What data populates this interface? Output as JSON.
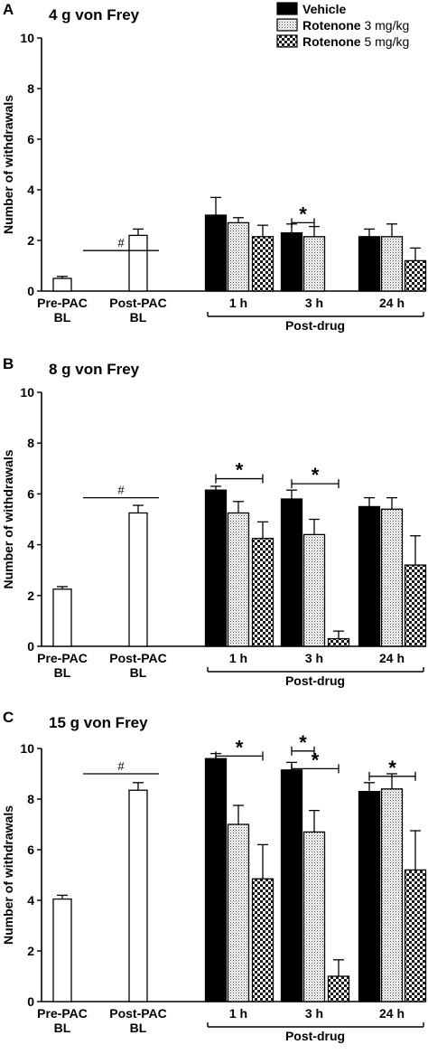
{
  "legend": [
    {
      "bold": "Vehicle",
      "rest": "",
      "pattern": "solid"
    },
    {
      "bold": "Rotenone",
      "rest": " 3 mg/kg",
      "pattern": "dots"
    },
    {
      "bold": "Rotenone",
      "rest": " 5 mg/kg",
      "pattern": "checker"
    }
  ],
  "colors": {
    "vehicle": "#000000",
    "outline": "#000000",
    "background": "#ffffff"
  },
  "ylabel": "Number of withdrawals",
  "baseline_labels": [
    [
      "Pre-PAC",
      "BL"
    ],
    [
      "Post-PAC",
      "BL"
    ]
  ],
  "time_labels": [
    "1 h",
    "3 h",
    "24 h"
  ],
  "postdrug_label": "Post-drug",
  "hash_symbol": "#",
  "star_symbol": "*",
  "chart_data": [
    {
      "type": "bar",
      "panel": "A",
      "title": "4 g von Frey",
      "ylabel": "Number of withdrawals",
      "ylim": [
        0,
        10
      ],
      "yticks": [
        "0",
        "2",
        "4",
        "6",
        "8",
        "10"
      ],
      "baseline": [
        {
          "label": "Pre-PAC BL",
          "value": 0.5,
          "err": 0.08
        },
        {
          "label": "Post-PAC BL",
          "value": 2.2,
          "err": 0.25
        }
      ],
      "categories": [
        "1 h",
        "3 h",
        "24 h"
      ],
      "series": [
        {
          "name": "Vehicle",
          "values": [
            3.0,
            2.3,
            2.15
          ],
          "err": [
            0.7,
            0.35,
            0.3
          ]
        },
        {
          "name": "Rotenone 3 mg/kg",
          "values": [
            2.7,
            2.15,
            2.15
          ],
          "err": [
            0.2,
            0.4,
            0.5
          ]
        },
        {
          "name": "Rotenone 5 mg/kg",
          "values": [
            2.15,
            0.0,
            1.2
          ],
          "err": [
            0.45,
            0.0,
            0.5
          ]
        }
      ],
      "significance": [
        {
          "symbol": "#",
          "between": [
            "Pre-PAC BL",
            "Post-PAC BL"
          ],
          "level": 1.6
        },
        {
          "symbol": "*",
          "time": "3 h",
          "between": [
            "Vehicle",
            "Rotenone 3 mg/kg"
          ],
          "level": 2.7
        }
      ]
    },
    {
      "type": "bar",
      "panel": "B",
      "title": "8 g von Frey",
      "ylabel": "Number of withdrawals",
      "ylim": [
        0,
        10
      ],
      "yticks": [
        "0",
        "2",
        "4",
        "6",
        "8",
        "10"
      ],
      "baseline": [
        {
          "label": "Pre-PAC BL",
          "value": 2.25,
          "err": 0.1
        },
        {
          "label": "Post-PAC BL",
          "value": 5.25,
          "err": 0.3
        }
      ],
      "categories": [
        "1 h",
        "3 h",
        "24 h"
      ],
      "series": [
        {
          "name": "Vehicle",
          "values": [
            6.15,
            5.8,
            5.5
          ],
          "err": [
            0.15,
            0.35,
            0.35
          ]
        },
        {
          "name": "Rotenone 3 mg/kg",
          "values": [
            5.25,
            4.4,
            5.4
          ],
          "err": [
            0.45,
            0.6,
            0.45
          ]
        },
        {
          "name": "Rotenone 5 mg/kg",
          "values": [
            4.25,
            0.3,
            3.2
          ],
          "err": [
            0.65,
            0.3,
            1.15
          ]
        }
      ],
      "significance": [
        {
          "symbol": "#",
          "between": [
            "Pre-PAC BL",
            "Post-PAC BL"
          ],
          "level": 5.85
        },
        {
          "symbol": "*",
          "time": "1 h",
          "between": [
            "Vehicle",
            "Rotenone 5 mg/kg"
          ],
          "level": 6.6
        },
        {
          "symbol": "*",
          "time": "3 h",
          "between": [
            "Vehicle",
            "Rotenone 5 mg/kg"
          ],
          "level": 6.4
        }
      ]
    },
    {
      "type": "bar",
      "panel": "C",
      "title": "15 g von Frey",
      "ylabel": "Number of withdrawals",
      "ylim": [
        0,
        10
      ],
      "yticks": [
        "0",
        "2",
        "4",
        "6",
        "8",
        "10"
      ],
      "baseline": [
        {
          "label": "Pre-PAC BL",
          "value": 4.05,
          "err": 0.15
        },
        {
          "label": "Post-PAC BL",
          "value": 8.35,
          "err": 0.3
        }
      ],
      "categories": [
        "1 h",
        "3 h",
        "24 h"
      ],
      "series": [
        {
          "name": "Vehicle",
          "values": [
            9.6,
            9.15,
            8.3
          ],
          "err": [
            0.2,
            0.3,
            0.35
          ]
        },
        {
          "name": "Rotenone 3 mg/kg",
          "values": [
            7.0,
            6.7,
            8.4
          ],
          "err": [
            0.75,
            0.85,
            0.6
          ]
        },
        {
          "name": "Rotenone 5 mg/kg",
          "values": [
            4.85,
            1.0,
            5.2
          ],
          "err": [
            1.35,
            0.65,
            1.55
          ]
        }
      ],
      "significance": [
        {
          "symbol": "#",
          "between": [
            "Pre-PAC BL",
            "Post-PAC BL"
          ],
          "level": 9.0
        },
        {
          "symbol": "*",
          "time": "1 h",
          "between": [
            "Vehicle",
            "Rotenone 5 mg/kg"
          ],
          "level": 9.7
        },
        {
          "symbol": "*",
          "time": "3 h",
          "between": [
            "Vehicle",
            "Rotenone 3 mg/kg"
          ],
          "level": 9.9
        },
        {
          "symbol": "*",
          "time": "3 h",
          "between": [
            "Vehicle",
            "Rotenone 5 mg/kg"
          ],
          "level": 9.2
        },
        {
          "symbol": "*",
          "time": "24 h",
          "between": [
            "Vehicle",
            "Rotenone 5 mg/kg"
          ],
          "level": 8.9
        }
      ]
    }
  ]
}
